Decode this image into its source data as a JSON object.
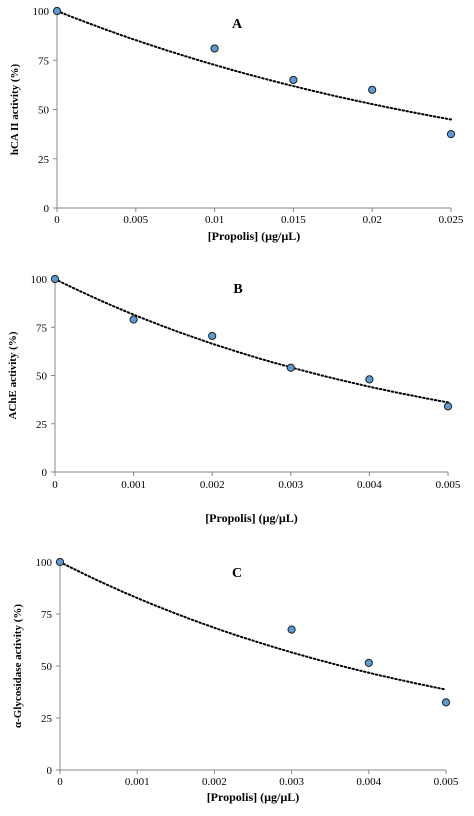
{
  "chart_data": [
    {
      "type": "scatter",
      "panel_label": "A",
      "xlabel": "[Propolis]   (µg/µL)",
      "ylabel": "hCA II activity (%)",
      "xlim": [
        0,
        0.025
      ],
      "ylim": [
        0,
        100
      ],
      "xticks": [
        "0",
        "0.005",
        "0.01",
        "0.015",
        "0.02",
        "0.025"
      ],
      "yticks": [
        "0",
        "25",
        "50",
        "75",
        "100"
      ],
      "points": [
        {
          "x": 0,
          "y": 100
        },
        {
          "x": 0.01,
          "y": 81
        },
        {
          "x": 0.015,
          "y": 65
        },
        {
          "x": 0.02,
          "y": 60
        },
        {
          "x": 0.025,
          "y": 37.5
        }
      ],
      "trendline": {
        "type": "exponential",
        "a": 100,
        "b": -32
      },
      "marker_color": "#5b9bd5",
      "trendline_style": "dotted"
    },
    {
      "type": "scatter",
      "panel_label": "B",
      "xlabel": "[Propolis]    (µg/µL)",
      "ylabel": "AChE activity (%)",
      "xlim": [
        0,
        0.005
      ],
      "ylim": [
        0,
        100
      ],
      "xticks": [
        "0",
        "0.001",
        "0.002",
        "0.003",
        "0.004",
        "0.005"
      ],
      "yticks": [
        "0",
        "25",
        "50",
        "75",
        "100"
      ],
      "points": [
        {
          "x": 0,
          "y": 100
        },
        {
          "x": 0.001,
          "y": 79
        },
        {
          "x": 0.002,
          "y": 70.5
        },
        {
          "x": 0.003,
          "y": 54
        },
        {
          "x": 0.004,
          "y": 48
        },
        {
          "x": 0.005,
          "y": 34
        }
      ],
      "trendline": {
        "type": "exponential",
        "a": 100,
        "b": -204
      },
      "marker_color": "#5b9bd5",
      "trendline_style": "dotted"
    },
    {
      "type": "scatter",
      "panel_label": "C",
      "xlabel": "[Propolis]   (µg/µL)",
      "ylabel": "α-Glycosidase activity (%)",
      "xlim": [
        0,
        0.005
      ],
      "ylim": [
        0,
        100
      ],
      "xticks": [
        "0",
        "0.001",
        "0.002",
        "0.003",
        "0.004",
        "0.005"
      ],
      "yticks": [
        "0",
        "25",
        "50",
        "75",
        "100"
      ],
      "points": [
        {
          "x": 0,
          "y": 100
        },
        {
          "x": 0.003,
          "y": 67.5
        },
        {
          "x": 0.004,
          "y": 51.5
        },
        {
          "x": 0.005,
          "y": 32.5
        }
      ],
      "trendline": {
        "type": "exponential",
        "a": 100,
        "b": -190
      },
      "marker_color": "#5b9bd5",
      "trendline_style": "dotted"
    }
  ]
}
